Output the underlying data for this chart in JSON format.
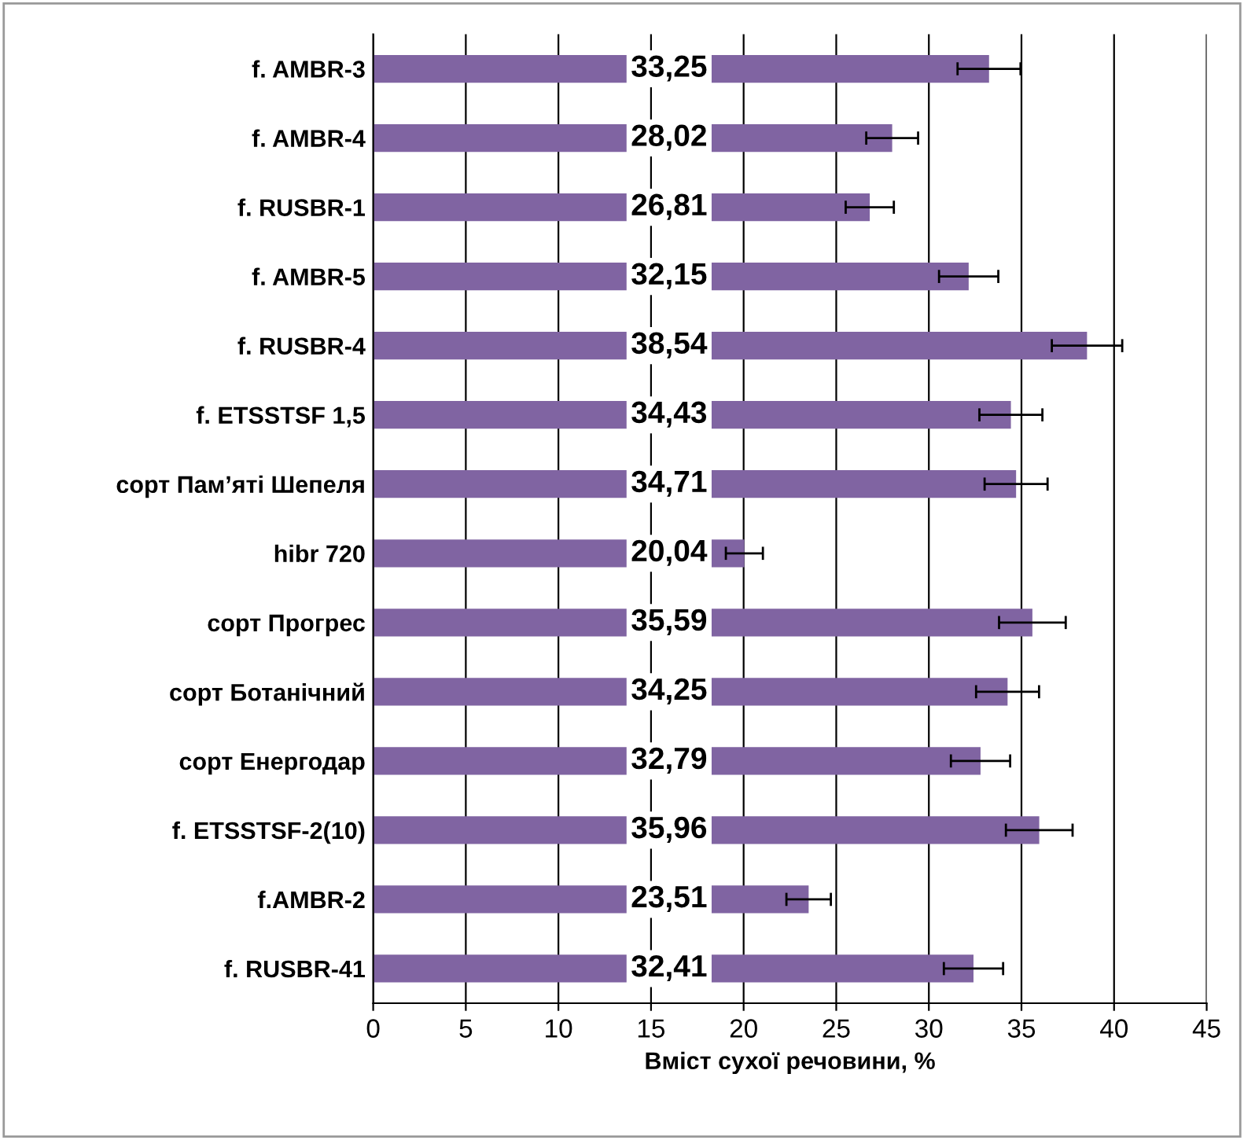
{
  "chart_data": {
    "type": "bar",
    "orientation": "horizontal",
    "xlabel": "Вміст сухої речовини, %",
    "categories": [
      "f. AMBR-3",
      "f. AMBR-4",
      "f. RUSBR-1",
      "f. AMBR-5",
      "f. RUSBR-4",
      "f. ETSSTSF 1,5",
      "сорт Пам’яті Шепеля",
      "hibr 720",
      "сорт Прогрес",
      "сорт Ботанічний",
      "сорт Енергодар",
      "f. ETSSTSF-2(10)",
      "f.AMBR-2",
      "f. RUSBR-41"
    ],
    "values": [
      33.25,
      28.02,
      26.81,
      32.15,
      38.54,
      34.43,
      34.71,
      20.04,
      35.59,
      34.25,
      32.79,
      35.96,
      23.51,
      32.41
    ],
    "value_labels": [
      "33,25",
      "28,02",
      "26,81",
      "32,15",
      "38,54",
      "34,43",
      "34,71",
      "20,04",
      "35,59",
      "34,25",
      "32,79",
      "35,96",
      "23,51",
      "32,41"
    ],
    "errors": [
      1.7,
      1.4,
      1.3,
      1.6,
      1.9,
      1.7,
      1.7,
      1.0,
      1.8,
      1.7,
      1.6,
      1.8,
      1.2,
      1.6
    ],
    "color": "#8064a2",
    "xlim": [
      0,
      45
    ],
    "xticks": [
      0,
      5,
      10,
      15,
      20,
      25,
      30,
      35,
      40,
      45
    ],
    "grid": "x"
  }
}
